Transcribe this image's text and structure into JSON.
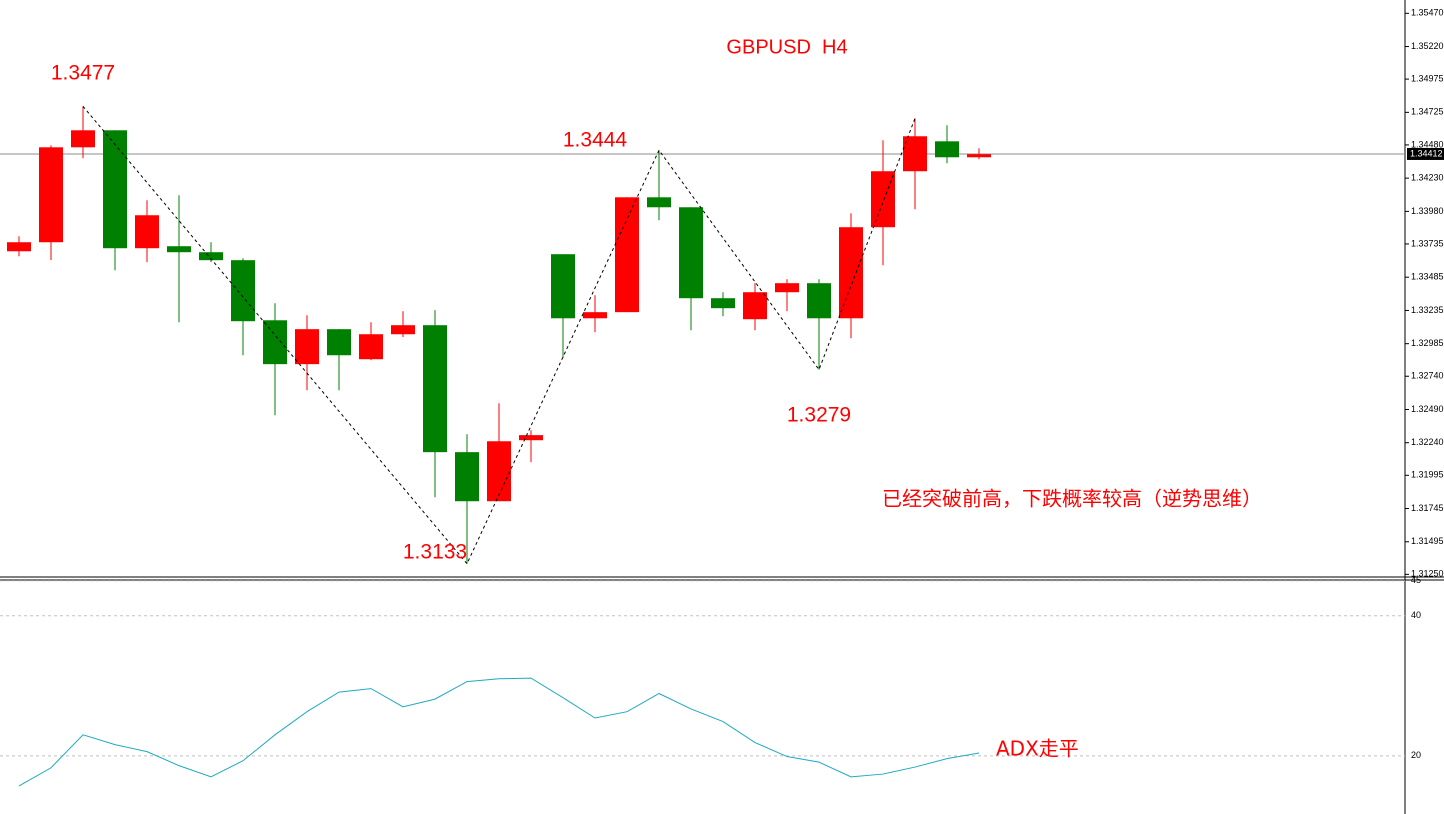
{
  "chart_data": [
    {
      "type": "candlestick",
      "title": "GBPUSD  H4",
      "open": [
        1.3368,
        1.33748,
        1.34462,
        1.3459,
        1.33703,
        1.33718,
        1.33673,
        1.33613,
        1.33161,
        1.32831,
        1.33094,
        1.32868,
        1.33056,
        1.33124,
        1.32169,
        1.318,
        1.32259,
        1.33658,
        1.33176,
        1.33222,
        1.34086,
        1.34011,
        1.33327,
        1.33169,
        1.33372,
        1.3344,
        1.33176,
        1.33861,
        1.34282,
        1.34507,
        1.34387
      ],
      "high": [
        1.33793,
        1.34477,
        1.3477,
        1.3459,
        1.34064,
        1.34101,
        1.33748,
        1.33628,
        1.33289,
        1.33199,
        1.33094,
        1.33146,
        1.33229,
        1.33237,
        1.32304,
        1.32537,
        1.32334,
        1.33658,
        1.33349,
        1.34086,
        1.3444,
        1.34011,
        1.33372,
        1.3344,
        1.3347,
        1.3347,
        1.33966,
        1.34515,
        1.3468,
        1.34628,
        1.34455
      ],
      "low": [
        1.33643,
        1.33613,
        1.3438,
        1.33537,
        1.33598,
        1.33146,
        1.33598,
        1.32898,
        1.32447,
        1.32635,
        1.32635,
        1.32861,
        1.33034,
        1.3183,
        1.3133,
        1.318,
        1.32094,
        1.32876,
        1.33071,
        1.33222,
        1.33913,
        1.33086,
        1.33191,
        1.33086,
        1.33229,
        1.3279,
        1.33026,
        1.33575,
        1.33996,
        1.34342,
        1.34372
      ],
      "close": [
        1.33748,
        1.34462,
        1.3459,
        1.33703,
        1.33951,
        1.33673,
        1.33613,
        1.33154,
        1.32831,
        1.33094,
        1.32898,
        1.33056,
        1.33124,
        1.32169,
        1.318,
        1.32251,
        1.32297,
        1.33176,
        1.33222,
        1.34086,
        1.34011,
        1.33327,
        1.33252,
        1.33372,
        1.3344,
        1.33176,
        1.33861,
        1.34282,
        1.34545,
        1.34387,
        1.3441
      ],
      "up_color": "#ff0000",
      "down_color": "#008000",
      "ylim": [
        1.3123,
        1.3557
      ],
      "yticks": [
        {
          "value": 1.3547,
          "label": "1.35470"
        },
        {
          "value": 1.3522,
          "label": "1.35220"
        },
        1.34975,
        1.34725,
        {
          "value": 1.3448,
          "label": "1.34480"
        },
        {
          "value": 1.3423,
          "label": "1.34230"
        },
        {
          "value": 1.3398,
          "label": "1.33980"
        },
        1.33735,
        1.33485,
        1.33235,
        1.32985,
        {
          "value": 1.3274,
          "label": "1.32740"
        },
        {
          "value": 1.3249,
          "label": "1.32490"
        },
        {
          "value": 1.3224,
          "label": "1.32240"
        },
        1.31995,
        1.31745,
        1.31495,
        {
          "value": 1.3125,
          "label": "1.31250"
        }
      ],
      "last_price": 1.34412,
      "zigzag": {
        "x": [
          2,
          14,
          20,
          25,
          28
        ],
        "values": [
          1.3477,
          1.3133,
          1.3444,
          1.3279,
          1.3468
        ],
        "value_labels": [
          "1.3477",
          "1.3133",
          "1.3444",
          "1.3279",
          null
        ]
      },
      "annotations": [
        "已经突破前高，下跌概率较高（逆势思维）"
      ]
    },
    {
      "type": "line",
      "series": [
        {
          "color": "#1fa9c2",
          "values": [
            15.7,
            18.3,
            23.0,
            21.6,
            20.6,
            18.6,
            17.0,
            19.3,
            23.0,
            26.3,
            29.1,
            29.6,
            27.0,
            28.1,
            30.6,
            31.0,
            31.1,
            28.3,
            25.4,
            26.3,
            28.9,
            26.7,
            24.9,
            21.9,
            19.9,
            19.1,
            17.0,
            17.4,
            18.4,
            19.6,
            20.4
          ]
        }
      ],
      "ylim": [
        11.7,
        45.1
      ],
      "yticks": [
        45,
        40,
        20
      ],
      "grid": true,
      "annotations": [
        "ADX走平"
      ]
    }
  ]
}
